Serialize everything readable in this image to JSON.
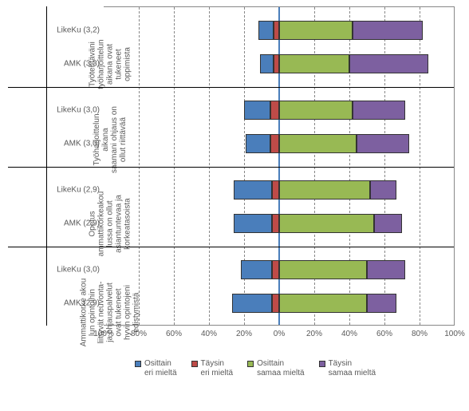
{
  "chart": {
    "type": "diverging-stacked-bar",
    "background_color": "#ffffff",
    "grid_color": "#888888",
    "centerline_color": "#4a7ebb",
    "xlim": [
      -100,
      100
    ],
    "xtick_step": 20,
    "xticks": [
      "100%",
      "80%",
      "60%",
      "40%",
      "20%",
      "0%",
      "20%",
      "40%",
      "60%",
      "80%",
      "100%"
    ],
    "colors": {
      "osittain_eri": "#4a7ebb",
      "taysin_eri": "#be4b48",
      "osittain_samaa": "#98b954",
      "taysin_samaa": "#7d60a0"
    },
    "series_labels": {
      "osittain_eri": "Osittain\neri mieltä",
      "taysin_eri": "Täysin\neri mieltä",
      "osittain_samaa": "Osittain\nsamaa mieltä",
      "taysin_samaa": "Täysin\nsamaa mieltä"
    },
    "groups": [
      {
        "label_lines": [
          "Työtehtäväni",
          "työharjoittelun",
          "aikana ovat",
          "tukeneet",
          "oppimista"
        ],
        "bars": [
          {
            "label": "LikeKu (3,2)",
            "neg": {
              "osittain_eri": 9,
              "taysin_eri": 3
            },
            "pos": {
              "osittain_samaa": 42,
              "taysin_samaa": 40
            }
          },
          {
            "label": "AMK (3,3)",
            "neg": {
              "osittain_eri": 8,
              "taysin_eri": 3
            },
            "pos": {
              "osittain_samaa": 40,
              "taysin_samaa": 45
            }
          }
        ]
      },
      {
        "label_lines": [
          "Työharjoittelun",
          "aikana",
          "saamani ohjaus on",
          "ollut riittävää"
        ],
        "bars": [
          {
            "label": "LikeKu (3,0)",
            "neg": {
              "osittain_eri": 15,
              "taysin_eri": 5
            },
            "pos": {
              "osittain_samaa": 42,
              "taysin_samaa": 30
            }
          },
          {
            "label": "AMK (3,0)",
            "neg": {
              "osittain_eri": 14,
              "taysin_eri": 5
            },
            "pos": {
              "osittain_samaa": 44,
              "taysin_samaa": 30
            }
          }
        ]
      },
      {
        "label_lines": [
          "Opetus",
          "ammattikorkeakou",
          "lussa on ollut",
          "asiantuntevaa ja",
          "korkeatasoista"
        ],
        "bars": [
          {
            "label": "LikeKu (2,9)",
            "neg": {
              "osittain_eri": 22,
              "taysin_eri": 4
            },
            "pos": {
              "osittain_samaa": 52,
              "taysin_samaa": 15
            }
          },
          {
            "label": "AMK (2,9)",
            "neg": {
              "osittain_eri": 22,
              "taysin_eri": 4
            },
            "pos": {
              "osittain_samaa": 54,
              "taysin_samaa": 16
            }
          }
        ]
      },
      {
        "label_lines": [
          "Ammattikorke akou",
          "lun opintoihin",
          "liittyvät neuvonta-",
          "ja ohjauspalvelut",
          "ovat tukeneet",
          "hyvin opintojeni",
          "edistymistä"
        ],
        "bars": [
          {
            "label": "LikeKu (3,0)",
            "neg": {
              "osittain_eri": 18,
              "taysin_eri": 4
            },
            "pos": {
              "osittain_samaa": 50,
              "taysin_samaa": 22
            }
          },
          {
            "label": "AMK (2,9)",
            "neg": {
              "osittain_eri": 23,
              "taysin_eri": 4
            },
            "pos": {
              "osittain_samaa": 50,
              "taysin_samaa": 17
            }
          }
        ]
      }
    ]
  }
}
